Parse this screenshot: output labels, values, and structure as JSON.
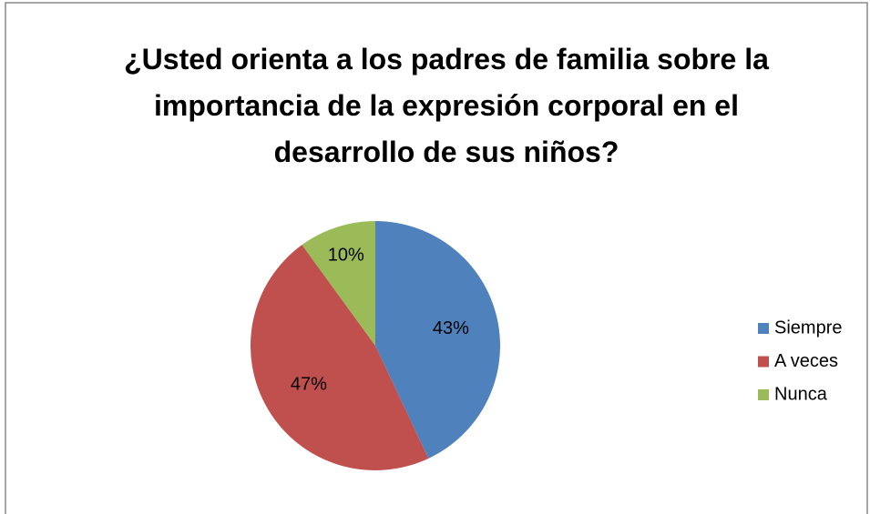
{
  "chart_data": {
    "type": "pie",
    "title": "¿Usted orienta a los padres de familia sobre la importancia de la expresión corporal en el desarrollo de sus niños?",
    "categories": [
      "Siempre",
      "A veces",
      "Nunca"
    ],
    "values": [
      43,
      47,
      10
    ],
    "value_labels": [
      "43%",
      "47%",
      "10%"
    ],
    "colors": [
      "#4f81bd",
      "#c0504d",
      "#9bbb59"
    ],
    "legend": "right"
  }
}
